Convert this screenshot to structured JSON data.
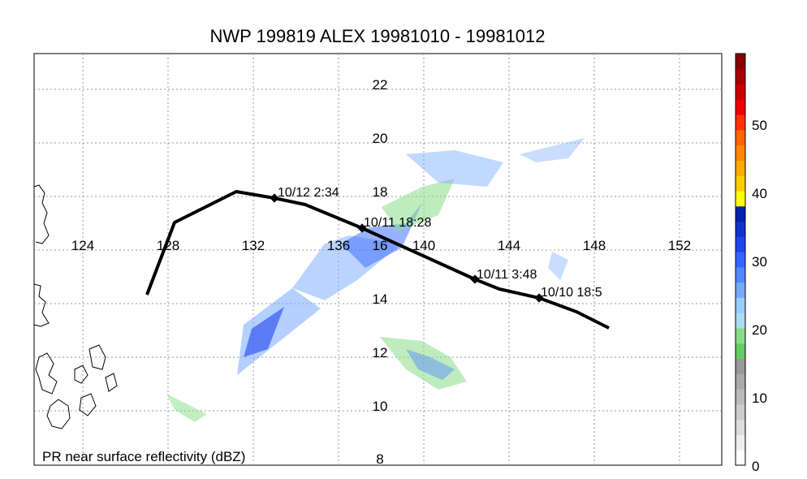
{
  "title": "NWP 199819 ALEX 19981010 - 19981012",
  "footer_label": "PR near surface reflectivity (dBZ)",
  "map": {
    "lon_labels": [
      "124",
      "128",
      "132",
      "136",
      "140",
      "144",
      "148",
      "152"
    ],
    "lat_labels": [
      "8",
      "10",
      "12",
      "14",
      "16",
      "18",
      "20",
      "22"
    ],
    "track_points": [
      {
        "label": "10/12 2:34"
      },
      {
        "label": "10/11 18:28"
      },
      {
        "label": "10/11 3:48"
      },
      {
        "label": "10/10 18:5"
      }
    ]
  },
  "colorbar": {
    "tick_labels": [
      "0",
      "10",
      "20",
      "30",
      "40",
      "50"
    ],
    "colors": [
      "#ffffff",
      "#eeeeee",
      "#dddddd",
      "#cccccc",
      "#bbbbbb",
      "#aaaaaa",
      "#999999",
      "#66cc66",
      "#88dd88",
      "#aaddee",
      "#99ccff",
      "#77aaff",
      "#5588ff",
      "#3366ff",
      "#2244ee",
      "#1133cc",
      "#0022aa",
      "#ffff00",
      "#ffcc00",
      "#ffaa00",
      "#ff8800",
      "#ff6600",
      "#ff3300",
      "#ee0000",
      "#cc0000",
      "#aa0000",
      "#880000"
    ]
  }
}
